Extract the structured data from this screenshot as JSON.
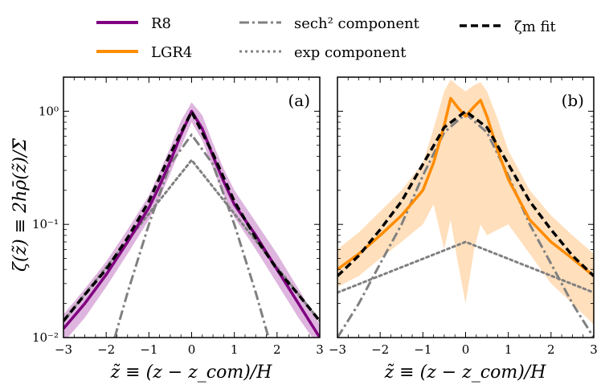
{
  "chart_data": [
    {
      "panel": "(a)",
      "type": "line",
      "yscale": "log",
      "xlim": [
        -3,
        3
      ],
      "ylim": [
        0.01,
        2.0
      ],
      "xticks": [
        -3,
        -2,
        -1,
        0,
        1,
        2,
        3
      ],
      "xtick_labels": [
        "−3",
        "−2",
        "−1",
        "0",
        "1",
        "2",
        "3"
      ],
      "yticks": [
        0.01,
        0.1,
        1
      ],
      "ytick_labels": [
        "10⁻²",
        "10⁻¹",
        "10⁰"
      ],
      "xlabel": "z̃ ≡ (z − z_com)/H",
      "ylabel": "ζ(z̃) ≡ 2hρ̄(z̃)/Σ̄",
      "series": [
        {
          "name": "R8",
          "style": "solid",
          "color": "#800080",
          "x": [
            -3,
            -2.5,
            -2,
            -1.5,
            -1,
            -0.75,
            -0.5,
            -0.25,
            0,
            0.25,
            0.5,
            0.75,
            1,
            1.5,
            2,
            2.5,
            3
          ],
          "y": [
            0.012,
            0.02,
            0.036,
            0.07,
            0.14,
            0.22,
            0.36,
            0.62,
            1.0,
            0.7,
            0.4,
            0.24,
            0.15,
            0.08,
            0.04,
            0.02,
            0.01
          ],
          "band_lower": [
            0.009,
            0.015,
            0.028,
            0.055,
            0.11,
            0.17,
            0.28,
            0.48,
            0.8,
            0.55,
            0.31,
            0.18,
            0.115,
            0.06,
            0.03,
            0.015,
            0.008
          ],
          "band_upper": [
            0.016,
            0.027,
            0.047,
            0.09,
            0.18,
            0.29,
            0.48,
            0.82,
            1.2,
            0.92,
            0.52,
            0.31,
            0.2,
            0.105,
            0.055,
            0.027,
            0.013
          ]
        },
        {
          "name": "sech² component",
          "style": "dashdot",
          "color": "#808080",
          "x": [
            -1.8,
            -1.5,
            -1,
            -0.5,
            0,
            0.5,
            1,
            1.5,
            1.8
          ],
          "y": [
            0.01,
            0.025,
            0.1,
            0.34,
            0.62,
            0.34,
            0.1,
            0.025,
            0.01
          ]
        },
        {
          "name": "exp component",
          "style": "dotted",
          "color": "#808080",
          "x": [
            -3,
            0,
            3
          ],
          "y": [
            0.014,
            0.37,
            0.014
          ]
        },
        {
          "name": "ζm fit",
          "style": "dashed",
          "color": "#000000",
          "x": [
            -3,
            -2.5,
            -2,
            -1.5,
            -1,
            -0.5,
            0,
            0.5,
            1,
            1.5,
            2,
            2.5,
            3
          ],
          "y": [
            0.014,
            0.024,
            0.04,
            0.076,
            0.16,
            0.42,
            0.99,
            0.42,
            0.16,
            0.076,
            0.04,
            0.024,
            0.014
          ]
        }
      ],
      "annotation": "(a)"
    },
    {
      "panel": "(b)",
      "type": "line",
      "yscale": "log",
      "xlim": [
        -3,
        3
      ],
      "ylim": [
        0.01,
        2.0
      ],
      "xticks": [
        -3,
        -2,
        -1,
        0,
        1,
        2,
        3
      ],
      "xtick_labels": [
        "−3",
        "−2",
        "−1",
        "0",
        "1",
        "2",
        "3"
      ],
      "xlabel": "z̃ ≡ (z − z_com)/H",
      "series": [
        {
          "name": "LGR4",
          "style": "solid",
          "color": "#ff8c00",
          "x": [
            -3,
            -2.5,
            -2,
            -1.5,
            -1,
            -0.75,
            -0.5,
            -0.35,
            -0.2,
            0,
            0.2,
            0.35,
            0.5,
            0.75,
            1,
            1.5,
            2,
            2.5,
            3
          ],
          "y": [
            0.04,
            0.055,
            0.08,
            0.12,
            0.2,
            0.35,
            0.75,
            1.3,
            1.1,
            0.9,
            1.1,
            1.25,
            0.9,
            0.45,
            0.25,
            0.11,
            0.07,
            0.05,
            0.035
          ],
          "band_lower": [
            0.028,
            0.035,
            0.05,
            0.07,
            0.1,
            0.15,
            0.06,
            0.11,
            0.05,
            0.02,
            0.06,
            0.1,
            0.08,
            0.09,
            0.1,
            0.055,
            0.03,
            0.02,
            0.013
          ],
          "band_upper": [
            0.06,
            0.085,
            0.13,
            0.2,
            0.35,
            0.7,
            1.5,
            1.9,
            1.7,
            1.5,
            1.7,
            1.8,
            1.5,
            0.85,
            0.45,
            0.2,
            0.12,
            0.08,
            0.055
          ]
        },
        {
          "name": "sech² component",
          "style": "dashdot",
          "color": "#808080",
          "x": [
            -3,
            -2.5,
            -2,
            -1.5,
            -1,
            -0.5,
            0,
            0.5,
            1,
            1.5,
            2,
            2.5,
            3
          ],
          "y": [
            0.01,
            0.02,
            0.045,
            0.1,
            0.27,
            0.65,
            0.95,
            0.65,
            0.27,
            0.1,
            0.045,
            0.02,
            0.01
          ]
        },
        {
          "name": "exp component",
          "style": "dotted",
          "color": "#808080",
          "x": [
            -3,
            0,
            3
          ],
          "y": [
            0.025,
            0.07,
            0.025
          ]
        },
        {
          "name": "ζm fit",
          "style": "dashed",
          "color": "#000000",
          "x": [
            -3,
            -2.5,
            -2,
            -1.5,
            -1,
            -0.5,
            0,
            0.5,
            1,
            1.5,
            2,
            2.5,
            3
          ],
          "y": [
            0.035,
            0.053,
            0.09,
            0.16,
            0.34,
            0.72,
            1.0,
            0.72,
            0.34,
            0.16,
            0.09,
            0.053,
            0.035
          ]
        }
      ],
      "annotation": "(b)"
    }
  ],
  "legend": {
    "items": [
      {
        "label": "R8",
        "style": "solid",
        "color": "#800080"
      },
      {
        "label": "LGR4",
        "style": "solid",
        "color": "#ff8c00"
      },
      {
        "label": "sech² component",
        "style": "dashdot",
        "color": "#808080"
      },
      {
        "label": "exp component",
        "style": "dotted",
        "color": "#808080"
      },
      {
        "label": "ζm fit",
        "style": "dashed",
        "color": "#000000"
      }
    ]
  },
  "colors": {
    "r8_band": "#d8a8d8",
    "lgr4_band": "#ffd9b0"
  }
}
